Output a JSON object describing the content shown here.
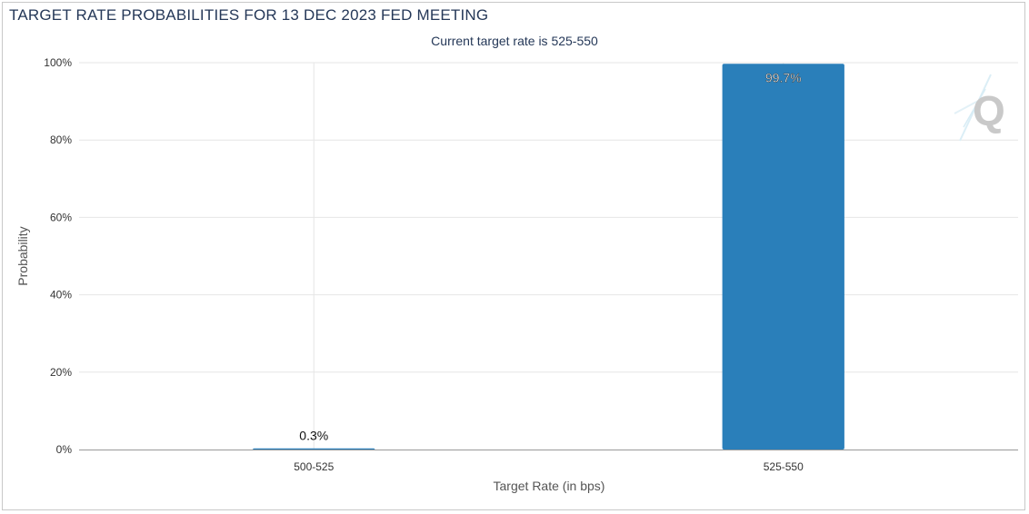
{
  "chart_data": {
    "type": "bar",
    "title": "TARGET RATE PROBABILITIES FOR 13 DEC 2023 FED MEETING",
    "subtitle": "Current target rate is 525-550",
    "xlabel": "Target Rate (in bps)",
    "ylabel": "Probability",
    "categories": [
      "500-525",
      "525-550"
    ],
    "values": [
      0.3,
      99.7
    ],
    "data_labels": [
      "0.3%",
      "99.7%"
    ],
    "yticks": [
      "0%",
      "20%",
      "40%",
      "60%",
      "80%",
      "100%"
    ],
    "ylim": [
      0,
      100
    ],
    "grid": true,
    "bar_color": "#2a7fba",
    "watermark": "Q"
  }
}
